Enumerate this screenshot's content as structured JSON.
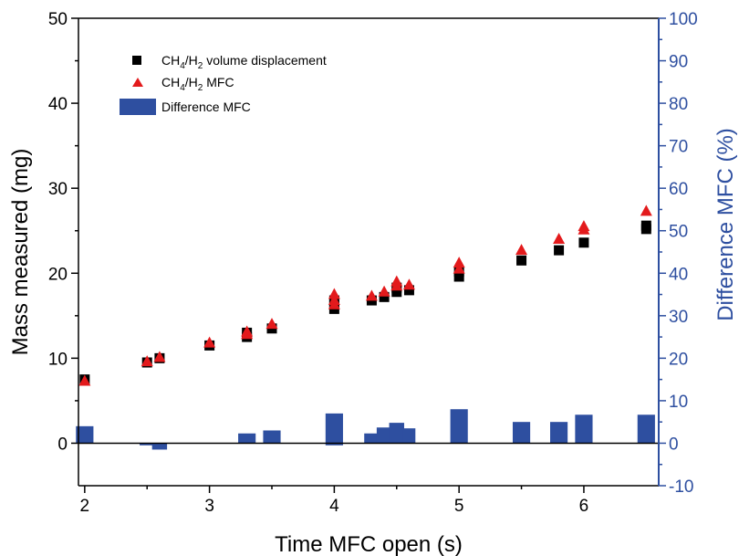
{
  "chart_data": {
    "type": "scatter",
    "xlabel": "Time MFC open (s)",
    "ylabel": "Mass measured (mg)",
    "y2label": "Difference MFC (%)",
    "xlim": [
      1.95,
      6.6
    ],
    "ylim": [
      -5,
      50
    ],
    "y2lim": [
      -10,
      100
    ],
    "x_ticks": [
      "2",
      "3",
      "4",
      "5",
      "6"
    ],
    "y_ticks": [
      "0",
      "10",
      "20",
      "30",
      "40",
      "50"
    ],
    "y2_ticks": [
      "-10",
      "0",
      "10",
      "20",
      "30",
      "40",
      "50",
      "60",
      "70",
      "80",
      "90",
      "100"
    ],
    "legend_position": "top-left",
    "colors": {
      "axis_left": "#000000",
      "axis_right": "#2e4fa0",
      "square": "#000000",
      "triangle": "#e31a1c",
      "bar": "#2e4fa0"
    },
    "series": [
      {
        "name_main": "CH",
        "sub1": "4",
        "mid": "/H",
        "sub2": "2",
        "name_rest": " volume displacement",
        "marker": "square",
        "axis": "left",
        "x": [
          2.0,
          2.5,
          2.6,
          3.0,
          3.3,
          3.3,
          3.5,
          4.0,
          4.0,
          4.0,
          4.3,
          4.4,
          4.5,
          4.5,
          4.6,
          5.0,
          5.0,
          5.5,
          5.8,
          6.0,
          6.5,
          6.5
        ],
        "y": [
          7.5,
          9.5,
          10.0,
          11.5,
          12.5,
          13.0,
          13.5,
          15.8,
          16.3,
          16.8,
          16.8,
          17.2,
          17.8,
          18.3,
          18.0,
          19.6,
          20.2,
          21.5,
          22.7,
          23.6,
          25.2,
          25.6
        ]
      },
      {
        "name_main": "CH",
        "sub1": "4",
        "mid": "/H",
        "sub2": "2",
        "name_rest": " MFC",
        "marker": "triangle",
        "axis": "left",
        "x": [
          2.0,
          2.5,
          2.6,
          3.0,
          3.3,
          3.3,
          3.5,
          4.0,
          4.0,
          4.0,
          4.3,
          4.4,
          4.5,
          4.5,
          4.6,
          5.0,
          5.0,
          5.5,
          5.8,
          6.0,
          6.0,
          6.5
        ],
        "y": [
          7.3,
          9.6,
          10.1,
          11.8,
          12.8,
          13.1,
          14.0,
          16.3,
          16.8,
          17.5,
          17.3,
          17.8,
          18.5,
          19.0,
          18.6,
          20.5,
          21.2,
          22.7,
          24.0,
          25.1,
          25.5,
          27.3
        ]
      },
      {
        "name": "Difference MFC",
        "marker": "bar",
        "axis": "right",
        "bars": [
          {
            "x": 2.0,
            "width": 0.14,
            "value": 4.0
          },
          {
            "x": 2.5,
            "width": 0.12,
            "value": -0.5
          },
          {
            "x": 2.6,
            "width": 0.12,
            "value": -1.5
          },
          {
            "x": 3.3,
            "width": 0.14,
            "value": 2.3
          },
          {
            "x": 3.5,
            "width": 0.14,
            "value": 3.0
          },
          {
            "x": 4.0,
            "width": 0.14,
            "value": 7.0
          },
          {
            "x": 4.0,
            "width": 0.14,
            "value": -0.5
          },
          {
            "x": 4.3,
            "width": 0.12,
            "value": 2.3
          },
          {
            "x": 4.4,
            "width": 0.12,
            "value": 3.7
          },
          {
            "x": 4.5,
            "width": 0.12,
            "value": 4.8
          },
          {
            "x": 4.6,
            "width": 0.1,
            "value": 3.5
          },
          {
            "x": 5.0,
            "width": 0.14,
            "value": 8.0
          },
          {
            "x": 5.5,
            "width": 0.14,
            "value": 5.0
          },
          {
            "x": 5.8,
            "width": 0.14,
            "value": 5.0
          },
          {
            "x": 6.0,
            "width": 0.14,
            "value": 6.7
          },
          {
            "x": 6.5,
            "width": 0.14,
            "value": 6.7
          }
        ]
      }
    ]
  }
}
